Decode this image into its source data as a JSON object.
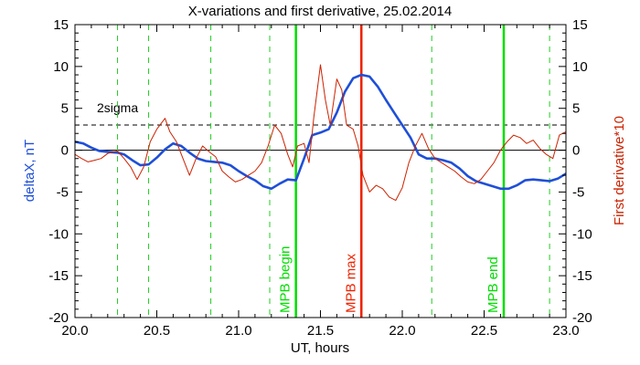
{
  "chart_data": {
    "type": "line",
    "title": "X-variations and first derivative, 25.02.2014",
    "xlabel": "UT, hours",
    "ylabel": "deltaX, nT",
    "ylabel_right": "First derivative*10",
    "xlim": [
      20.0,
      23.0
    ],
    "ylim": [
      -20,
      15
    ],
    "ylim_right": [
      -20,
      15
    ],
    "x_ticks": [
      "20.0",
      "20.5",
      "21.0",
      "21.5",
      "22.0",
      "22.5",
      "23.0"
    ],
    "y_ticks": [
      "15",
      "10",
      "5",
      "0",
      "-5",
      "-10",
      "-15",
      "-20"
    ],
    "threshold": {
      "label": "2sigma",
      "value": 3
    },
    "dashed_verticals": [
      20.26,
      20.45,
      20.83,
      21.19,
      22.18,
      22.9
    ],
    "markers": [
      {
        "label": "MPB begin",
        "x": 21.35,
        "color": "#00dd00"
      },
      {
        "label": "MPB max",
        "x": 21.75,
        "color": "#ee2200"
      },
      {
        "label": "MPB end",
        "x": 22.62,
        "color": "#00dd00"
      }
    ],
    "colors": {
      "deltaX": "#1f4fd8",
      "derivative": "#cc2200",
      "mpb_green": "#00dd00",
      "mpb_red": "#ee2200",
      "dashed_green": "#22cc22"
    },
    "series": [
      {
        "name": "deltaX, nT",
        "color": "#1f4fd8",
        "x": [
          20.0,
          20.05,
          20.1,
          20.15,
          20.2,
          20.26,
          20.3,
          20.35,
          20.4,
          20.45,
          20.5,
          20.55,
          20.6,
          20.65,
          20.7,
          20.75,
          20.8,
          20.85,
          20.9,
          20.95,
          21.0,
          21.05,
          21.1,
          21.15,
          21.2,
          21.25,
          21.3,
          21.35,
          21.4,
          21.45,
          21.5,
          21.55,
          21.6,
          21.65,
          21.7,
          21.75,
          21.8,
          21.85,
          21.9,
          21.95,
          22.0,
          22.05,
          22.1,
          22.15,
          22.2,
          22.25,
          22.3,
          22.35,
          22.4,
          22.45,
          22.5,
          22.55,
          22.6,
          22.65,
          22.7,
          22.75,
          22.8,
          22.85,
          22.9,
          22.95,
          23.0
        ],
        "values": [
          1.0,
          0.8,
          0.3,
          -0.1,
          -0.2,
          -0.3,
          -0.5,
          -1.2,
          -1.8,
          -1.7,
          -0.9,
          0.1,
          0.8,
          0.5,
          -0.3,
          -1.0,
          -1.3,
          -1.4,
          -1.5,
          -1.8,
          -2.5,
          -3.1,
          -3.6,
          -4.3,
          -4.6,
          -4.0,
          -3.5,
          -3.6,
          -1.0,
          1.8,
          2.1,
          2.5,
          4.5,
          7.0,
          8.6,
          9.0,
          8.8,
          7.6,
          6.0,
          4.5,
          3.0,
          1.5,
          -0.5,
          -1.0,
          -1.0,
          -1.2,
          -1.5,
          -2.2,
          -3.1,
          -3.7,
          -4.0,
          -4.3,
          -4.6,
          -4.6,
          -4.2,
          -3.6,
          -3.5,
          -3.6,
          -3.7,
          -3.4,
          -2.8
        ]
      },
      {
        "name": "First derivative*10",
        "color": "#cc2200",
        "x": [
          20.0,
          20.04,
          20.08,
          20.12,
          20.16,
          20.2,
          20.26,
          20.3,
          20.34,
          20.38,
          20.42,
          20.46,
          20.5,
          20.55,
          20.58,
          20.62,
          20.66,
          20.7,
          20.74,
          20.78,
          20.82,
          20.86,
          20.9,
          20.94,
          20.98,
          21.02,
          21.06,
          21.1,
          21.14,
          21.18,
          21.22,
          21.26,
          21.3,
          21.33,
          21.36,
          21.4,
          21.43,
          21.46,
          21.5,
          21.53,
          21.56,
          21.6,
          21.63,
          21.66,
          21.7,
          21.73,
          21.76,
          21.8,
          21.84,
          21.88,
          21.92,
          21.96,
          22.0,
          22.04,
          22.08,
          22.12,
          22.16,
          22.2,
          22.24,
          22.28,
          22.32,
          22.36,
          22.4,
          22.44,
          22.48,
          22.52,
          22.56,
          22.6,
          22.64,
          22.68,
          22.72,
          22.76,
          22.8,
          22.84,
          22.88,
          22.92,
          22.96,
          23.0
        ],
        "values": [
          -0.5,
          -1.0,
          -1.4,
          -1.2,
          -1.0,
          -0.4,
          -0.1,
          -1.0,
          -2.0,
          -3.5,
          -2.0,
          1.0,
          2.5,
          3.8,
          2.2,
          1.0,
          -1.0,
          -3.0,
          -1.0,
          0.5,
          -0.2,
          -0.8,
          -2.5,
          -3.2,
          -3.8,
          -3.5,
          -3.0,
          -2.5,
          -1.5,
          0.5,
          3.0,
          2.0,
          -0.5,
          -2.0,
          0.5,
          0.8,
          -1.5,
          4.0,
          10.2,
          6.0,
          3.0,
          8.5,
          7.2,
          3.0,
          2.5,
          0.5,
          -3.0,
          -5.0,
          -4.2,
          -4.6,
          -5.6,
          -6.0,
          -4.5,
          -1.5,
          0.5,
          2.0,
          0.2,
          -1.0,
          -1.5,
          -2.0,
          -2.5,
          -3.2,
          -3.8,
          -4.0,
          -3.5,
          -2.5,
          -1.5,
          0.0,
          1.0,
          1.8,
          1.5,
          0.8,
          1.2,
          0.2,
          -0.5,
          -1.0,
          1.8,
          2.2
        ]
      }
    ],
    "grid": false
  }
}
